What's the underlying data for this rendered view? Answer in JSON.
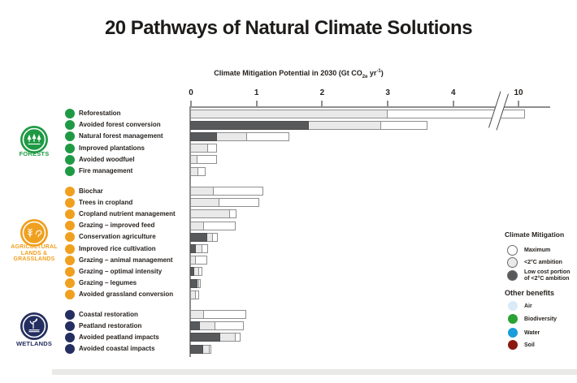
{
  "title": "20 Pathways of Natural Climate Solutions",
  "axis": {
    "label_prefix": "Climate Mitigation Potential in 2030 (Gt CO",
    "label_sub": "2e",
    "label_mid": " yr",
    "label_sup": "-1",
    "label_suffix": ")"
  },
  "legend": {
    "climate_title": "Climate Mitigation",
    "climate_items": [
      {
        "label": "Maximum",
        "fill": "#ffffff"
      },
      {
        "label": "<2°C ambition",
        "fill": "#e9e9e9"
      },
      {
        "label": "Low cost portion of <2°C ambition",
        "fill": "#58595b"
      }
    ],
    "benefits_title": "Other benefits",
    "benefit_items": [
      {
        "label": "Air",
        "fill": "#d9eaf8"
      },
      {
        "label": "Biodiversity",
        "fill": "#2aa233"
      },
      {
        "label": "Water",
        "fill": "#1b9dd9"
      },
      {
        "label": "Soil",
        "fill": "#8a1a0f"
      }
    ]
  },
  "chart_data": {
    "type": "bar",
    "orientation": "horizontal",
    "title": "20 Pathways of Natural Climate Solutions",
    "xlabel": "Climate Mitigation Potential in 2030 (Gt CO2e yr-1)",
    "xticks": [
      0,
      1,
      2,
      3,
      4,
      10
    ],
    "axis_break_between": [
      4,
      10
    ],
    "series_legend": [
      "Maximum",
      "<2°C ambition",
      "Low cost portion of <2°C ambition"
    ],
    "groups": [
      {
        "name": "FORESTS",
        "color": "#1f9a44",
        "badge_lines": [
          "FORESTS"
        ],
        "icon": "trees-icon",
        "pathways": [
          {
            "label": "Reforestation",
            "low_cost": 0,
            "ambition_2c": 3.0,
            "maximum": 10.1,
            "crosses_axis_break": true
          },
          {
            "label": "Avoided forest conversion",
            "low_cost": 1.8,
            "ambition_2c": 2.9,
            "maximum": 3.6
          },
          {
            "label": "Natural forest management",
            "low_cost": 0.4,
            "ambition_2c": 0.85,
            "maximum": 1.5
          },
          {
            "label": "Improved plantations",
            "low_cost": 0,
            "ambition_2c": 0.26,
            "maximum": 0.4
          },
          {
            "label": "Avoided woodfuel",
            "low_cost": 0,
            "ambition_2c": 0.1,
            "maximum": 0.4
          },
          {
            "label": "Fire management",
            "low_cost": 0,
            "ambition_2c": 0.11,
            "maximum": 0.22
          }
        ]
      },
      {
        "name": "AGRICULTURAL LANDS & GRASSLANDS",
        "color": "#f0a01f",
        "badge_lines": [
          "AGRICULTURAL",
          "LANDS &",
          "GRASSLANDS"
        ],
        "icon": "agriculture-icon",
        "pathways": [
          {
            "label": "Biochar",
            "low_cost": 0,
            "ambition_2c": 0.35,
            "maximum": 1.1
          },
          {
            "label": "Trees in cropland",
            "low_cost": 0,
            "ambition_2c": 0.43,
            "maximum": 1.04
          },
          {
            "label": "Cropland nutrient management",
            "low_cost": 0,
            "ambition_2c": 0.6,
            "maximum": 0.7
          },
          {
            "label": "Grazing – improved feed",
            "low_cost": 0,
            "ambition_2c": 0.2,
            "maximum": 0.68
          },
          {
            "label": "Conservation agriculture",
            "low_cost": 0.25,
            "ambition_2c": 0.33,
            "maximum": 0.41
          },
          {
            "label": "Improved rice cultivation",
            "low_cost": 0.08,
            "ambition_2c": 0.17,
            "maximum": 0.26
          },
          {
            "label": "Grazing – animal management",
            "low_cost": 0,
            "ambition_2c": 0.08,
            "maximum": 0.25
          },
          {
            "label": "Grazing – optimal intensity",
            "low_cost": 0.05,
            "ambition_2c": 0.12,
            "maximum": 0.17
          },
          {
            "label": "Grazing – legumes",
            "low_cost": 0.1,
            "ambition_2c": 0.13,
            "maximum": 0.15
          },
          {
            "label": "Avoided grassland conversion",
            "low_cost": 0,
            "ambition_2c": 0.07,
            "maximum": 0.12
          }
        ]
      },
      {
        "name": "WETLANDS",
        "color": "#242e60",
        "badge_lines": [
          "WETLANDS"
        ],
        "icon": "wetland-icon",
        "pathways": [
          {
            "label": "Coastal restoration",
            "low_cost": 0,
            "ambition_2c": 0.2,
            "maximum": 0.84
          },
          {
            "label": "Peatland restoration",
            "low_cost": 0.14,
            "ambition_2c": 0.37,
            "maximum": 0.81
          },
          {
            "label": "Avoided peatland impacts",
            "low_cost": 0.45,
            "ambition_2c": 0.68,
            "maximum": 0.75
          },
          {
            "label": "Avoided coastal impacts",
            "low_cost": 0.18,
            "ambition_2c": 0.28,
            "maximum": 0.31
          }
        ]
      }
    ]
  }
}
